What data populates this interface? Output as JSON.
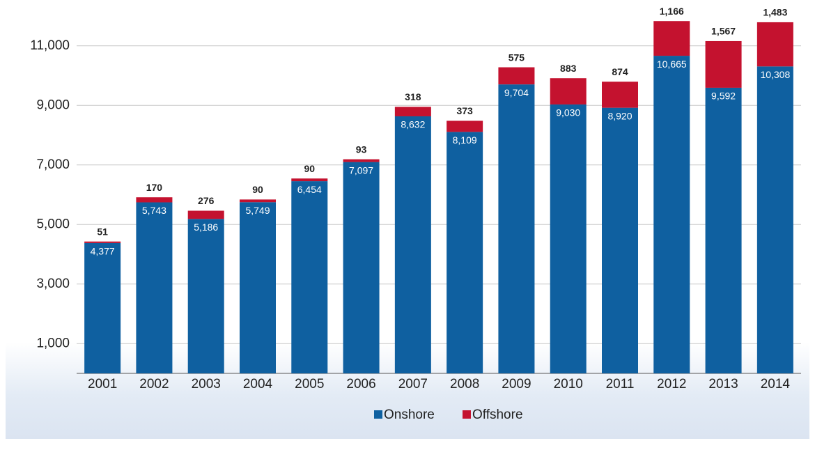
{
  "chart_data": {
    "type": "stacked_bar",
    "categories": [
      "2001",
      "2002",
      "2003",
      "2004",
      "2005",
      "2006",
      "2007",
      "2008",
      "2009",
      "2010",
      "2011",
      "2012",
      "2013",
      "2014"
    ],
    "series": [
      {
        "name": "Onshore",
        "color": "#0f60a0",
        "values": [
          4377,
          5743,
          5186,
          5749,
          6454,
          7097,
          8632,
          8109,
          9704,
          9030,
          8920,
          10665,
          9592,
          10308
        ],
        "value_labels": [
          "4,377",
          "5,743",
          "5,186",
          "5,749",
          "6,454",
          "7,097",
          "8,632",
          "8,109",
          "9,704",
          "9,030",
          "8,920",
          "10,665",
          "9,592",
          "10,308"
        ]
      },
      {
        "name": "Offshore",
        "color": "#c4122f",
        "values": [
          51,
          170,
          276,
          90,
          90,
          93,
          318,
          373,
          575,
          883,
          874,
          1166,
          1567,
          1483
        ],
        "value_labels": [
          "51",
          "170",
          "276",
          "90",
          "90",
          "93",
          "318",
          "373",
          "575",
          "883",
          "874",
          "1,166",
          "1,567",
          "1,483"
        ]
      }
    ],
    "ylim": [
      0,
      12000
    ],
    "yticks": [
      {
        "value": 1000,
        "label": "1,000"
      },
      {
        "value": 3000,
        "label": "3,000"
      },
      {
        "value": 5000,
        "label": "5,000"
      },
      {
        "value": 7000,
        "label": "7,000"
      },
      {
        "value": 9000,
        "label": "9,000"
      },
      {
        "value": 11000,
        "label": "11,000"
      }
    ],
    "grid": true,
    "legend": "bottom"
  }
}
